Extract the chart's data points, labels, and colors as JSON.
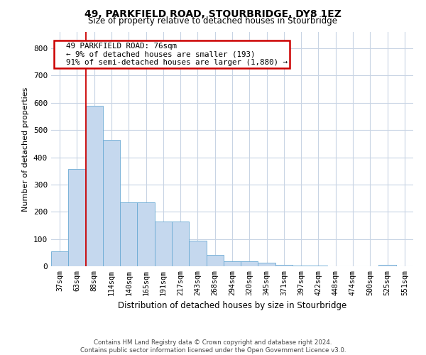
{
  "title": "49, PARKFIELD ROAD, STOURBRIDGE, DY8 1EZ",
  "subtitle": "Size of property relative to detached houses in Stourbridge",
  "xlabel": "Distribution of detached houses by size in Stourbridge",
  "ylabel": "Number of detached properties",
  "bar_color": "#c5d8ee",
  "bar_edge_color": "#6aaad4",
  "background_color": "#ffffff",
  "grid_color": "#c8d4e4",
  "annotation_box_color": "#cc0000",
  "red_line_color": "#cc0000",
  "bin_labels": [
    "37sqm",
    "63sqm",
    "88sqm",
    "114sqm",
    "140sqm",
    "165sqm",
    "191sqm",
    "217sqm",
    "243sqm",
    "268sqm",
    "294sqm",
    "320sqm",
    "345sqm",
    "371sqm",
    "397sqm",
    "422sqm",
    "448sqm",
    "474sqm",
    "500sqm",
    "525sqm",
    "551sqm"
  ],
  "bar_values": [
    55,
    358,
    590,
    465,
    235,
    235,
    163,
    163,
    95,
    42,
    18,
    18,
    12,
    5,
    2,
    2,
    1,
    0,
    0,
    5,
    0
  ],
  "ylim": [
    0,
    860
  ],
  "yticks": [
    0,
    100,
    200,
    300,
    400,
    500,
    600,
    700,
    800
  ],
  "red_line_x": 1.5,
  "annotation_text": "  49 PARKFIELD ROAD: 76sqm\n  ← 9% of detached houses are smaller (193)\n  91% of semi-detached houses are larger (1,880) →",
  "footer_line1": "Contains HM Land Registry data © Crown copyright and database right 2024.",
  "footer_line2": "Contains public sector information licensed under the Open Government Licence v3.0."
}
